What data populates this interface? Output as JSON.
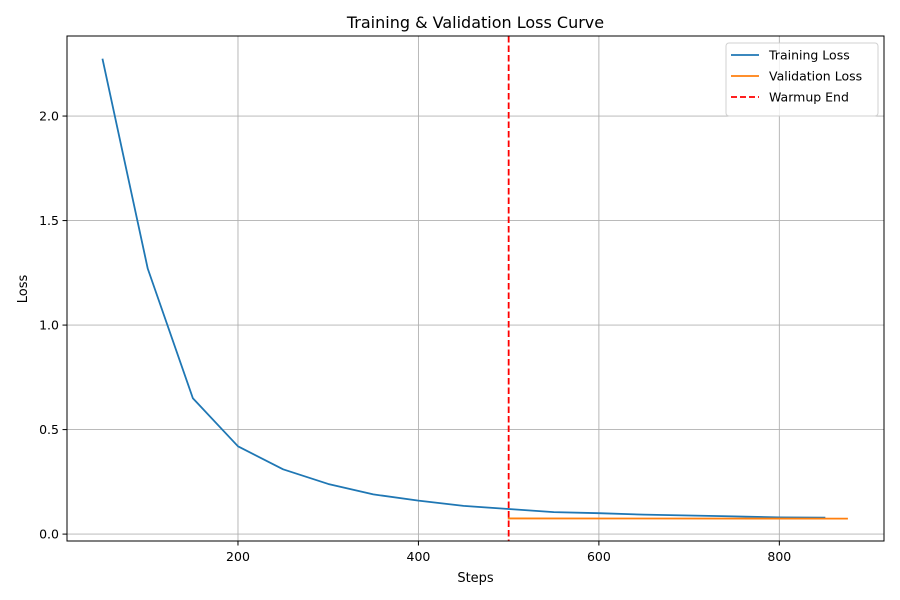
{
  "chart_data": {
    "type": "line",
    "title": "Training & Validation Loss Curve",
    "xlabel": "Steps",
    "ylabel": "Loss",
    "xlim": [
      10.5,
      916
    ],
    "ylim": [
      -0.033,
      2.383
    ],
    "xticks": [
      200,
      400,
      600,
      800
    ],
    "xtick_labels": [
      "200",
      "400",
      "600",
      "800"
    ],
    "yticks": [
      0.0,
      0.5,
      1.0,
      1.5,
      2.0
    ],
    "ytick_labels": [
      "0.0",
      "0.5",
      "1.0",
      "1.5",
      "2.0"
    ],
    "grid": true,
    "legend_position": "top-right",
    "series": [
      {
        "name": "Training Loss",
        "color": "#1f77b4",
        "style": "solid",
        "x": [
          50,
          100,
          150,
          200,
          250,
          300,
          350,
          400,
          450,
          500,
          550,
          600,
          650,
          700,
          750,
          800,
          850
        ],
        "y": [
          2.27,
          1.27,
          0.65,
          0.42,
          0.31,
          0.24,
          0.19,
          0.16,
          0.135,
          0.12,
          0.105,
          0.1,
          0.093,
          0.089,
          0.085,
          0.08,
          0.079
        ]
      },
      {
        "name": "Validation Loss",
        "color": "#ff7f0e",
        "style": "solid",
        "x": [
          500,
          875
        ],
        "y": [
          0.075,
          0.074
        ]
      }
    ],
    "vlines": [
      {
        "name": "Warmup End",
        "x": 500,
        "color": "#ff0000",
        "style": "dashed"
      }
    ]
  }
}
